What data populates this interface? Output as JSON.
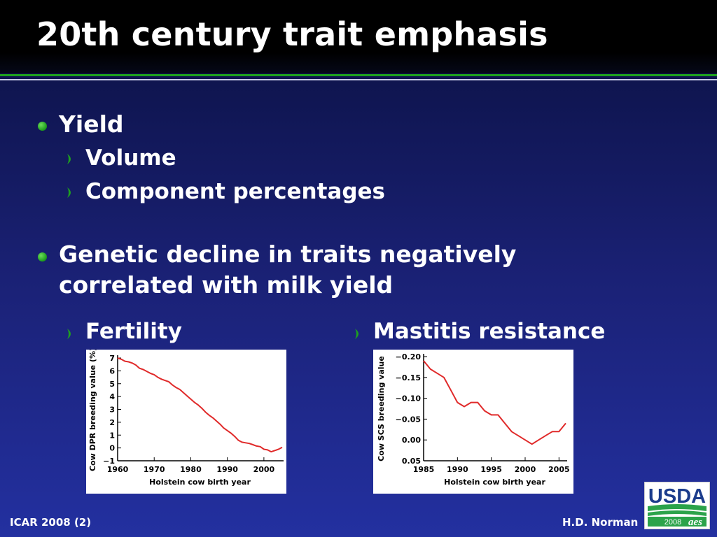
{
  "title": "20th century trait emphasis",
  "bullets": [
    {
      "text": "Yield",
      "sub": [
        "Volume",
        "Component percentages"
      ]
    },
    {
      "text": "Genetic decline in traits negatively correlated with milk yield"
    }
  ],
  "subheads": {
    "fertility": "Fertility",
    "mastitis": "Mastitis resistance"
  },
  "footer": {
    "left": "ICAR 2008 (2)",
    "right": "H.D. Norman"
  },
  "logo": {
    "text": "USDA",
    "year": "2008",
    "mark": "aes"
  },
  "colors": {
    "accent_green": "#1ea21e",
    "line_red": "#e02a2a",
    "bullet_red": "#e02a2a"
  },
  "chart_data": [
    {
      "type": "line",
      "xlabel": "Holstein cow birth year",
      "ylabel": "Cow DPR breeding value (%)",
      "xlim": [
        1960,
        2005
      ],
      "ylim": [
        -1,
        7
      ],
      "xticks": [
        "1960",
        "1970",
        "1980",
        "1990",
        "2000"
      ],
      "yticks": [
        "7",
        "6",
        "5",
        "4",
        "3",
        "2",
        "1",
        "0",
        "−1"
      ],
      "x": [
        1960,
        1961,
        1962,
        1963,
        1964,
        1965,
        1966,
        1967,
        1968,
        1969,
        1970,
        1971,
        1972,
        1973,
        1974,
        1975,
        1976,
        1977,
        1978,
        1979,
        1980,
        1981,
        1982,
        1983,
        1984,
        1985,
        1986,
        1987,
        1988,
        1989,
        1990,
        1991,
        1992,
        1993,
        1994,
        1995,
        1996,
        1997,
        1998,
        1999,
        2000,
        2001,
        2002,
        2003,
        2004,
        2005
      ],
      "y": [
        7.0,
        6.9,
        6.75,
        6.7,
        6.6,
        6.45,
        6.2,
        6.1,
        5.95,
        5.8,
        5.7,
        5.5,
        5.35,
        5.25,
        5.15,
        4.9,
        4.7,
        4.55,
        4.3,
        4.05,
        3.8,
        3.55,
        3.35,
        3.1,
        2.8,
        2.55,
        2.35,
        2.1,
        1.85,
        1.55,
        1.35,
        1.15,
        0.9,
        0.6,
        0.45,
        0.4,
        0.35,
        0.25,
        0.15,
        0.1,
        -0.1,
        -0.15,
        -0.3,
        -0.2,
        -0.1,
        0.05
      ]
    },
    {
      "type": "line",
      "xlabel": "Holstein cow birth year",
      "ylabel": "Cow SCS breeding value",
      "xlim": [
        1985,
        2006
      ],
      "ylim": [
        0.05,
        -0.2
      ],
      "xticks": [
        "1985",
        "1990",
        "1995",
        "2000",
        "2005"
      ],
      "yticks": [
        "−0.20",
        "−0.15",
        "−0.10",
        "−0.05",
        "0.00",
        "0.05"
      ],
      "x": [
        1985,
        1986,
        1987,
        1988,
        1989,
        1990,
        1991,
        1992,
        1993,
        1994,
        1995,
        1996,
        1997,
        1998,
        1999,
        2000,
        2001,
        2002,
        2003,
        2004,
        2005,
        2006
      ],
      "y": [
        -0.19,
        -0.17,
        -0.16,
        -0.15,
        -0.12,
        -0.09,
        -0.08,
        -0.09,
        -0.09,
        -0.07,
        -0.06,
        -0.06,
        -0.04,
        -0.02,
        -0.01,
        0.0,
        0.01,
        0.0,
        -0.01,
        -0.02,
        -0.02,
        -0.04
      ]
    }
  ]
}
